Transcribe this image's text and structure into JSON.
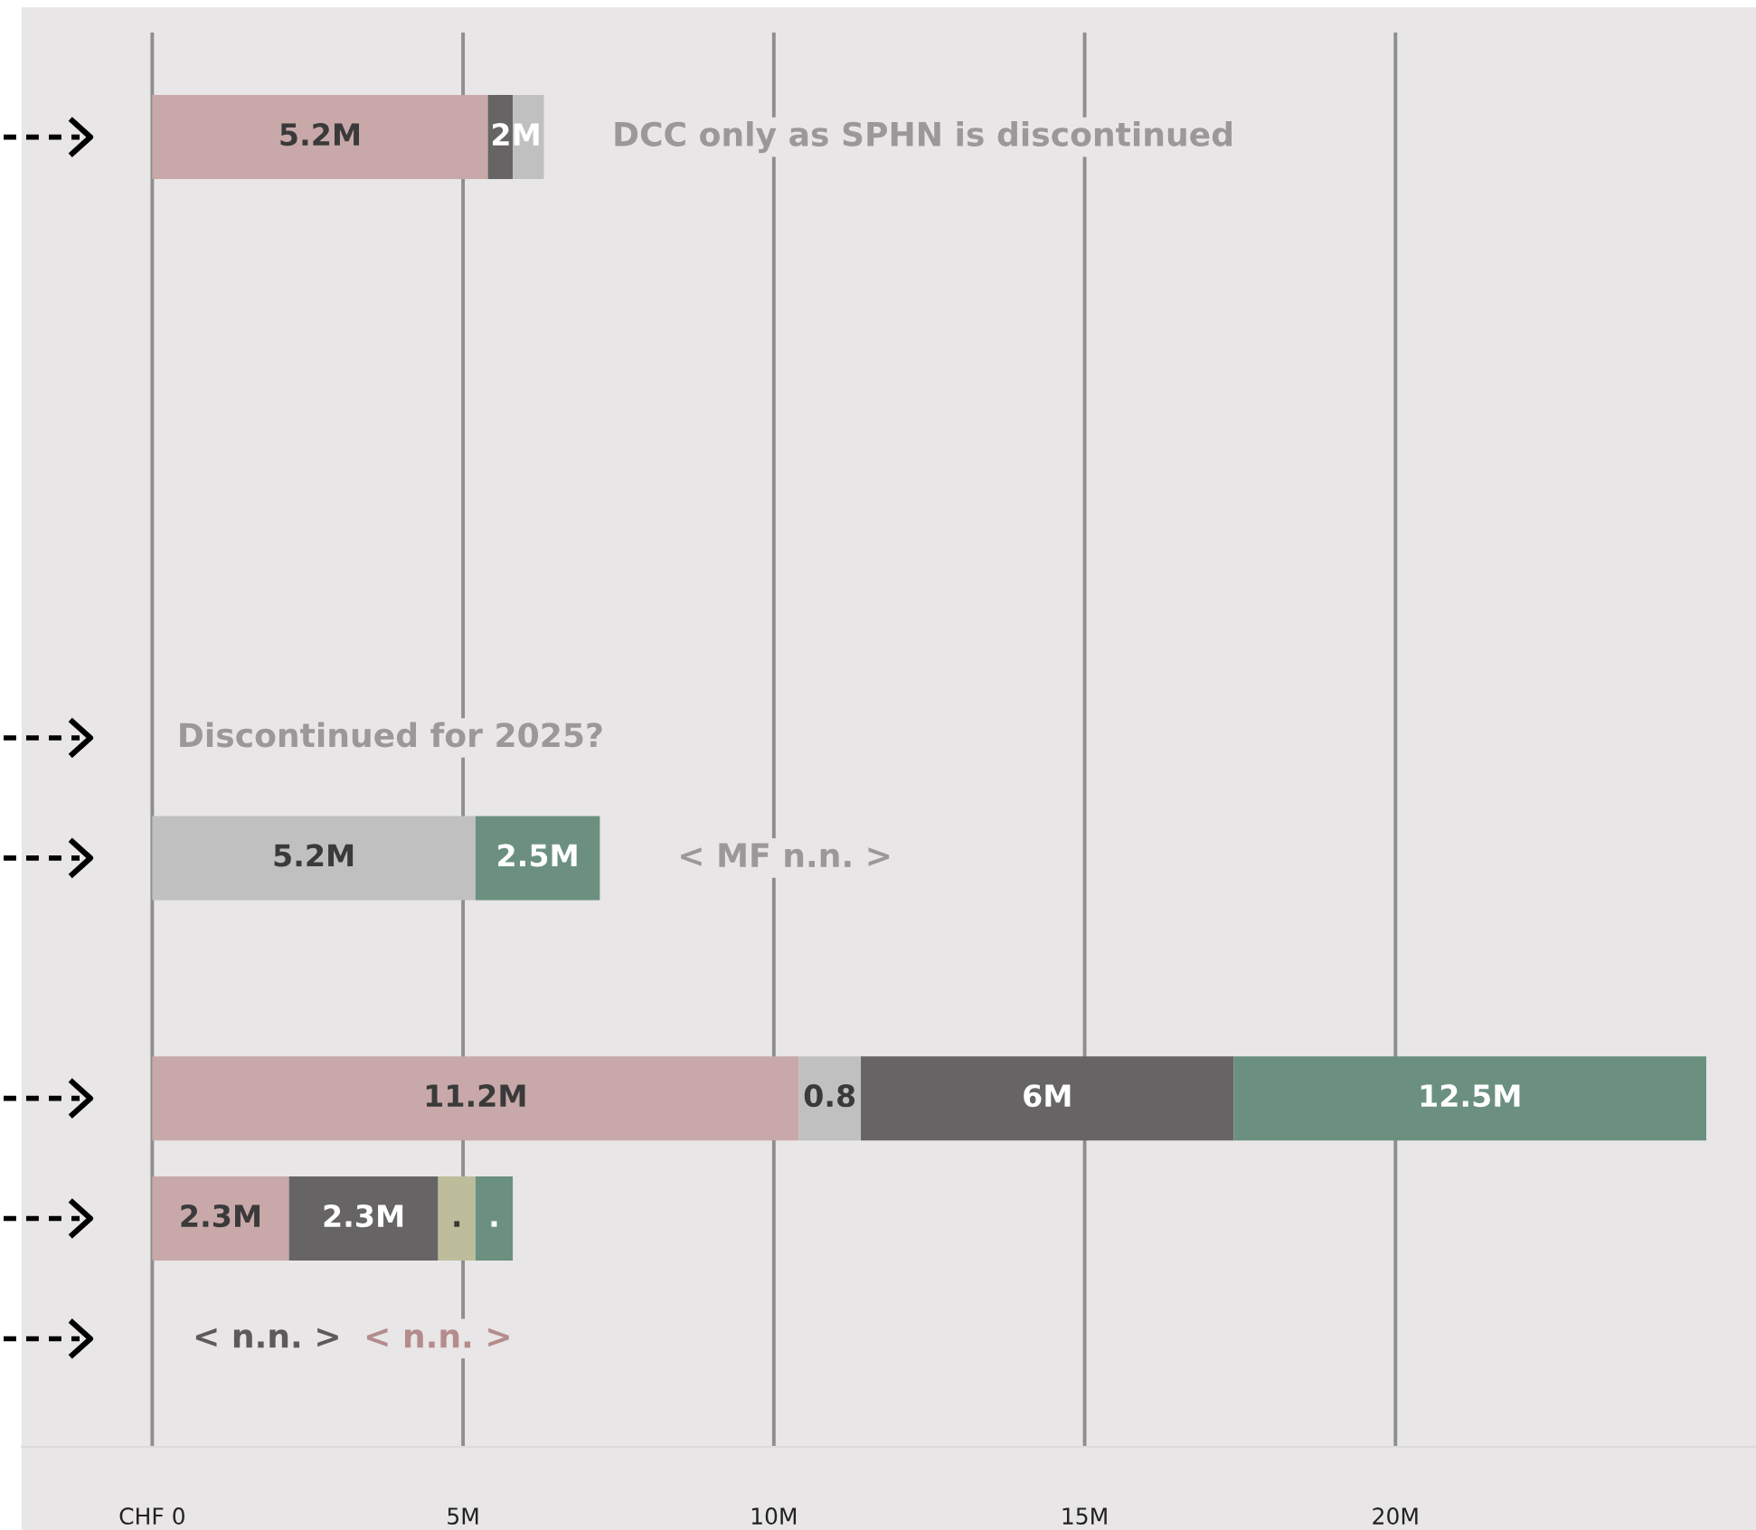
{
  "chart_data": {
    "type": "bar",
    "orientation": "horizontal",
    "stacked": true,
    "grid": "x",
    "categories": [
      null,
      null,
      null,
      null,
      null,
      null,
      null,
      null,
      null,
      null,
      null
    ],
    "series": [
      {
        "color": "#c8a8a9",
        "values": [
          5.4,
          null,
          null,
          null,
          null,
          null,
          null,
          null,
          10.4,
          2.2,
          null
        ]
      },
      {
        "color": "#c0c0c0",
        "values": [
          null,
          null,
          null,
          null,
          null,
          null,
          5.2,
          null,
          1.0,
          null,
          null
        ]
      },
      {
        "color": "#666465",
        "values": [
          0.4,
          null,
          null,
          null,
          null,
          null,
          null,
          null,
          6.0,
          2.4,
          null
        ]
      },
      {
        "color": "#c0c0c0",
        "values": [
          0.5,
          null,
          null,
          null,
          null,
          null,
          null,
          null,
          null,
          null,
          null
        ]
      },
      {
        "color": "#bdbd9b",
        "values": [
          null,
          null,
          null,
          null,
          null,
          null,
          null,
          null,
          null,
          0.6,
          null
        ]
      },
      {
        "color": "#6b9080",
        "values": [
          null,
          null,
          null,
          null,
          null,
          null,
          2.0,
          null,
          7.6,
          0.6,
          null
        ]
      }
    ],
    "xlim": [
      -2.1,
      25.8
    ],
    "xticks": [
      {
        "value": 0,
        "label": "CHF 0"
      },
      {
        "value": 5,
        "label": "5M"
      },
      {
        "value": 10,
        "label": "10M"
      },
      {
        "value": 15,
        "label": "15M"
      },
      {
        "value": 20,
        "label": "20M"
      }
    ],
    "annotations": [
      "DCC only as SPHN is discontinued",
      "Discontinued for 2025?",
      "< MF n.n. >",
      "< n.n. >",
      "< n.n. >",
      "5.2M",
      "2M",
      "5.2M",
      "2.5M",
      "11.2M",
      "0.8",
      "6M",
      "12.5M",
      "2.3M",
      "2.3M",
      ".",
      "."
    ]
  }
}
